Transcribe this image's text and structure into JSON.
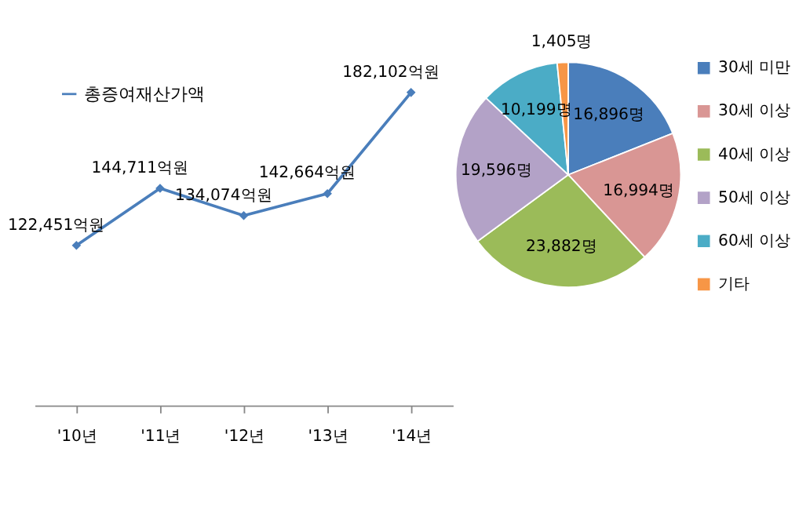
{
  "chart_data": [
    {
      "type": "line",
      "categories": [
        "'10년",
        "'11년",
        "'12년",
        "'13년",
        "'14년"
      ],
      "series": [
        {
          "name": "총증여재산가액",
          "color": "#4a7ebb",
          "values": [
            122451,
            144711,
            134074,
            142664,
            182102
          ],
          "value_labels": [
            "122,451억원",
            "144,711억원",
            "134,074억원",
            "142,664억원",
            "182,102억원"
          ]
        }
      ],
      "marker": "diamond",
      "legend": "top left",
      "tick_labels": "x",
      "grid": false
    },
    {
      "type": "pie",
      "categories": [
        "30세 미만",
        "30세 이상",
        "40세 이상",
        "50세 이상",
        "60세 이상",
        "기타"
      ],
      "values": [
        16896,
        16994,
        23882,
        19596,
        10199,
        1405
      ],
      "colors": [
        "#4a7ebb",
        "#d99694",
        "#9bbb59",
        "#b3a2c7",
        "#4bacc6",
        "#f79646"
      ],
      "value_labels": [
        "16,896명",
        "16,994명",
        "23,882명",
        "19,596명",
        "10,199명",
        "1,405명"
      ],
      "legend": "right"
    }
  ]
}
